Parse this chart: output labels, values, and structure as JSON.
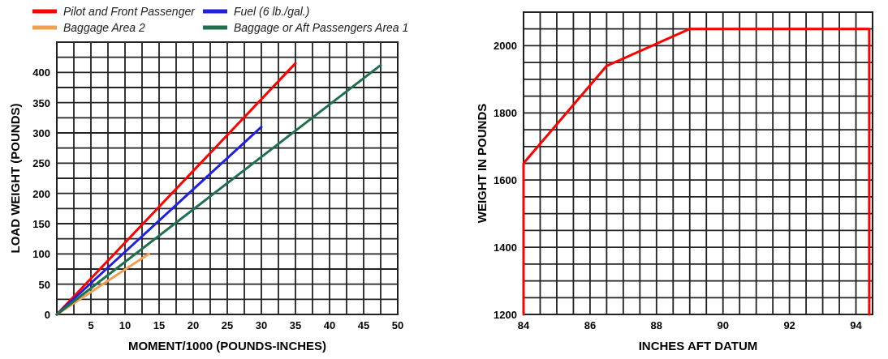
{
  "chart_data": [
    {
      "type": "line",
      "xlabel": "MOMENT/1000 (POUNDS-INCHES)",
      "ylabel": "LOAD WEIGHT (POUNDS)",
      "grid": true,
      "legend": "top",
      "line_style": "solid",
      "xlim": [
        0,
        50
      ],
      "ylim": [
        0,
        450
      ],
      "xticks": [
        {
          "value": 0,
          "label": null
        },
        {
          "value": 2.5,
          "label": null
        },
        5,
        {
          "value": 7.5,
          "label": null
        },
        10,
        {
          "value": 12.5,
          "label": null
        },
        15,
        {
          "value": 17.5,
          "label": null
        },
        20,
        {
          "value": 22.5,
          "label": null
        },
        25,
        {
          "value": 27.5,
          "label": null
        },
        30,
        {
          "value": 32.5,
          "label": null
        },
        35,
        {
          "value": 37.5,
          "label": null
        },
        40,
        {
          "value": 42.5,
          "label": null
        },
        45,
        {
          "value": 47.5,
          "label": null
        },
        50
      ],
      "yticks": [
        0,
        {
          "value": 25,
          "label": null
        },
        50,
        {
          "value": 75,
          "label": null
        },
        100,
        {
          "value": 125,
          "label": null
        },
        150,
        {
          "value": 175,
          "label": null
        },
        200,
        {
          "value": 225,
          "label": null
        },
        250,
        {
          "value": 275,
          "label": null
        },
        300,
        {
          "value": 325,
          "label": null
        },
        350,
        {
          "value": 375,
          "label": null
        },
        400,
        {
          "value": 425,
          "label": null
        },
        {
          "value": 450,
          "label": null
        }
      ],
      "series": [
        {
          "name": "Pilot and Front Passenger",
          "color": "#ff0000",
          "x": [
            0,
            35
          ],
          "values": [
            0,
            415
          ]
        },
        {
          "name": "Fuel (6 lb./gal.)",
          "color": "#2020e0",
          "x": [
            0,
            30
          ],
          "values": [
            0,
            310
          ]
        },
        {
          "name": "Baggage Area 2",
          "color": "#f0a050",
          "x": [
            0,
            13.5
          ],
          "values": [
            0,
            100
          ]
        },
        {
          "name": "Baggage or Aft Passengers Area 1",
          "color": "#207050",
          "x": [
            0,
            47.5
          ],
          "values": [
            0,
            412
          ]
        }
      ]
    },
    {
      "type": "line",
      "xlabel": "INCHES AFT DATUM",
      "ylabel": "WEIGHT IN POUNDS",
      "grid": true,
      "line_style": "solid",
      "xlim": [
        84,
        94.5
      ],
      "ylim": [
        1200,
        2100
      ],
      "xticks": [
        84,
        {
          "value": 84.5,
          "label": null
        },
        {
          "value": 85,
          "label": null
        },
        {
          "value": 85.5,
          "label": null
        },
        86,
        {
          "value": 86.5,
          "label": null
        },
        {
          "value": 87,
          "label": null
        },
        {
          "value": 87.5,
          "label": null
        },
        88,
        {
          "value": 88.5,
          "label": null
        },
        {
          "value": 89,
          "label": null
        },
        {
          "value": 89.5,
          "label": null
        },
        90,
        {
          "value": 90.5,
          "label": null
        },
        {
          "value": 91,
          "label": null
        },
        {
          "value": 91.5,
          "label": null
        },
        92,
        {
          "value": 92.5,
          "label": null
        },
        {
          "value": 93,
          "label": null
        },
        {
          "value": 93.5,
          "label": null
        },
        94,
        {
          "value": 94.5,
          "label": null
        }
      ],
      "yticks": [
        1200,
        {
          "value": 1250,
          "label": null
        },
        {
          "value": 1300,
          "label": null
        },
        {
          "value": 1350,
          "label": null
        },
        1400,
        {
          "value": 1450,
          "label": null
        },
        {
          "value": 1500,
          "label": null
        },
        {
          "value": 1550,
          "label": null
        },
        1600,
        {
          "value": 1650,
          "label": null
        },
        {
          "value": 1700,
          "label": null
        },
        {
          "value": 1750,
          "label": null
        },
        1800,
        {
          "value": 1850,
          "label": null
        },
        {
          "value": 1900,
          "label": null
        },
        {
          "value": 1950,
          "label": null
        },
        2000,
        {
          "value": 2050,
          "label": null
        },
        {
          "value": 2100,
          "label": null
        }
      ],
      "series": [
        {
          "color": "#ff0000",
          "x": [
            84,
            84,
            86.5,
            89,
            94.4,
            94.4
          ],
          "values": [
            1200,
            1650,
            1940,
            2050,
            2050,
            1200
          ]
        }
      ]
    }
  ]
}
